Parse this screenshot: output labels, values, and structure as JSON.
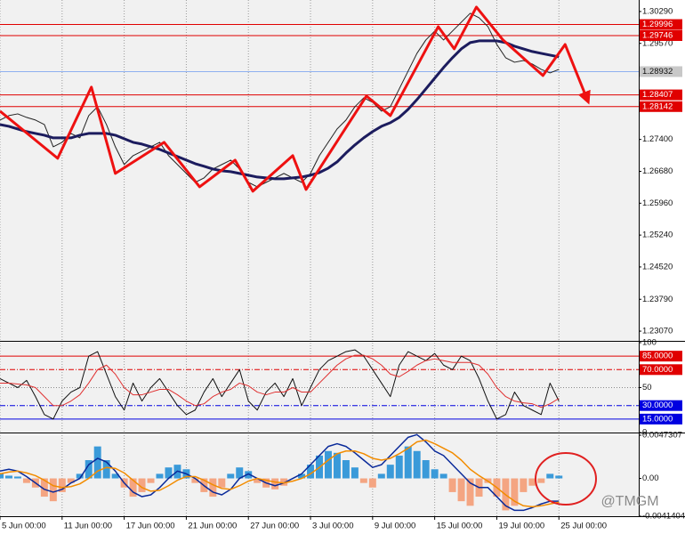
{
  "watermark": "@TMGM",
  "chart_data": [
    {
      "type": "line",
      "x": [
        0,
        1,
        2,
        3,
        4,
        5,
        6,
        7,
        8,
        9,
        10,
        11,
        12,
        13,
        14,
        15,
        16,
        17,
        18,
        19,
        20,
        21,
        22,
        23,
        24,
        25,
        26,
        27,
        28,
        29,
        30,
        31,
        32,
        33,
        34,
        35,
        36,
        37,
        38,
        39,
        40,
        41,
        42,
        43,
        44,
        45,
        46,
        47,
        48,
        49,
        50,
        51,
        52,
        53,
        54,
        55,
        56,
        57,
        58,
        59,
        60,
        61,
        62,
        63
      ],
      "xlim": [
        0,
        72
      ],
      "ylim": [
        1.2285,
        1.3055
      ],
      "yticks": [
        {
          "value": 1.3029,
          "label": "1.30290"
        },
        {
          "value": 1.2957,
          "label": "1.29570"
        },
        {
          "value": 1.274,
          "label": "1.27400"
        },
        {
          "value": 1.2668,
          "label": "1.26680"
        },
        {
          "value": 1.2596,
          "label": "1.25960"
        },
        {
          "value": 1.2524,
          "label": "1.25240"
        },
        {
          "value": 1.2452,
          "label": "1.24520"
        },
        {
          "value": 1.2379,
          "label": "1.23790"
        },
        {
          "value": 1.2307,
          "label": "1.23070"
        }
      ],
      "series": [
        {
          "color": "#222222",
          "width": 1,
          "values": [
            1.27838,
            1.27938,
            1.27978,
            1.27898,
            1.27838,
            1.27737,
            1.27235,
            1.27335,
            1.27536,
            1.27436,
            1.27938,
            1.28139,
            1.27737,
            1.27235,
            1.26833,
            1.27034,
            1.27134,
            1.27235,
            1.27335,
            1.27034,
            1.26833,
            1.26632,
            1.26431,
            1.26531,
            1.26732,
            1.26833,
            1.26933,
            1.26732,
            1.26431,
            1.2633,
            1.26431,
            1.26531,
            1.26632,
            1.26531,
            1.26431,
            1.26632,
            1.27034,
            1.27335,
            1.27637,
            1.27838,
            1.28139,
            1.2834,
            1.2824,
            1.28039,
            1.28139,
            1.28541,
            1.28943,
            1.29345,
            1.29647,
            1.29848,
            1.29647,
            1.29848,
            1.30049,
            1.3025,
            1.30149,
            1.29948,
            1.29546,
            1.29245,
            1.29144,
            1.29184,
            1.29104,
            1.28983,
            1.28903,
            1.28983
          ]
        },
        {
          "color": "#1c1c5e",
          "width": 3,
          "values": [
            1.27737,
            1.27697,
            1.27637,
            1.27577,
            1.27536,
            1.27496,
            1.27436,
            1.27436,
            1.27436,
            1.27496,
            1.27536,
            1.27536,
            1.27536,
            1.27496,
            1.27416,
            1.27335,
            1.27295,
            1.27235,
            1.27175,
            1.27094,
            1.27014,
            1.26933,
            1.26853,
            1.26793,
            1.26732,
            1.26692,
            1.26672,
            1.26632,
            1.26592,
            1.26551,
            1.26531,
            1.26511,
            1.26511,
            1.26531,
            1.26551,
            1.26592,
            1.26652,
            1.26752,
            1.26893,
            1.27094,
            1.27275,
            1.27436,
            1.27577,
            1.27697,
            1.27778,
            1.27898,
            1.28079,
            1.283,
            1.28541,
            1.28783,
            1.29024,
            1.29245,
            1.29446,
            1.29587,
            1.29627,
            1.29627,
            1.29627,
            1.29587,
            1.29506,
            1.29446,
            1.29386,
            1.29345,
            1.29305,
            1.29265
          ]
        }
      ],
      "levels": [
        {
          "value": 1.29996,
          "color": "#e00000",
          "dash": "solid"
        },
        {
          "value": 1.29746,
          "color": "#e00000",
          "dash": "solid"
        },
        {
          "value": 1.28407,
          "color": "#e00000",
          "dash": "solid"
        },
        {
          "value": 1.28142,
          "color": "#e00000",
          "dash": "solid"
        }
      ],
      "last_price": 1.28932,
      "zigzag": {
        "color": "#ee1111",
        "x": [
          0,
          6.5,
          10.3,
          13,
          18.5,
          22.5,
          26.5,
          28.5,
          33,
          34.5,
          41.3,
          44,
          49.4,
          51.2,
          53.7,
          56.7,
          61.2,
          63.7,
          66.2
        ],
        "values": [
          1.28039,
          1.26974,
          1.28582,
          1.26632,
          1.27335,
          1.2633,
          1.26933,
          1.2623,
          1.27034,
          1.2627,
          1.28381,
          1.27938,
          1.29948,
          1.29446,
          1.3039,
          1.29647,
          1.28843,
          1.29546,
          1.283
        ]
      }
    },
    {
      "type": "line",
      "x": [
        0,
        1,
        2,
        3,
        4,
        5,
        6,
        7,
        8,
        9,
        10,
        11,
        12,
        13,
        14,
        15,
        16,
        17,
        18,
        19,
        20,
        21,
        22,
        23,
        24,
        25,
        26,
        27,
        28,
        29,
        30,
        31,
        32,
        33,
        34,
        35,
        36,
        37,
        38,
        39,
        40,
        41,
        42,
        43,
        44,
        45,
        46,
        47,
        48,
        49,
        50,
        51,
        52,
        53,
        54,
        55,
        56,
        57,
        58,
        59,
        60,
        61,
        62,
        63
      ],
      "xlim": [
        0,
        72
      ],
      "ylim": [
        0,
        100
      ],
      "yticks": [
        100,
        50,
        0
      ],
      "series": [
        {
          "color": "#111111",
          "width": 1,
          "values": [
            60,
            55,
            50,
            58,
            40,
            20,
            15,
            35,
            45,
            50,
            85,
            90,
            65,
            40,
            25,
            55,
            35,
            50,
            60,
            45,
            30,
            20,
            25,
            45,
            60,
            40,
            55,
            70,
            35,
            25,
            45,
            55,
            40,
            60,
            30,
            50,
            70,
            80,
            85,
            90,
            92,
            85,
            70,
            55,
            40,
            75,
            90,
            85,
            80,
            88,
            75,
            70,
            85,
            80,
            60,
            35,
            15,
            20,
            45,
            30,
            25,
            20,
            55,
            35
          ]
        },
        {
          "color": "#e03030",
          "width": 1,
          "values": [
            55,
            55,
            54,
            53,
            50,
            40,
            30,
            30,
            35,
            42,
            55,
            70,
            75,
            65,
            50,
            42,
            42,
            45,
            48,
            48,
            42,
            35,
            30,
            32,
            40,
            45,
            48,
            55,
            52,
            45,
            42,
            45,
            45,
            50,
            45,
            45,
            55,
            65,
            75,
            82,
            86,
            86,
            82,
            75,
            65,
            62,
            68,
            75,
            80,
            82,
            80,
            78,
            78,
            78,
            75,
            65,
            50,
            40,
            35,
            33,
            32,
            28,
            32,
            38
          ]
        }
      ],
      "levels": [
        {
          "value": 85,
          "label": "85.0000",
          "color": "#e00000",
          "dash": "solid"
        },
        {
          "value": 70,
          "label": "70.0000",
          "color": "#e00000",
          "dash": "dashdot"
        },
        {
          "value": 30,
          "label": "30.0000",
          "color": "#0000e0",
          "dash": "dashdot"
        },
        {
          "value": 15,
          "label": "15.0000",
          "color": "#0000e0",
          "dash": "solid"
        }
      ]
    },
    {
      "type": "bar",
      "x": [
        0,
        1,
        2,
        3,
        4,
        5,
        6,
        7,
        8,
        9,
        10,
        11,
        12,
        13,
        14,
        15,
        16,
        17,
        18,
        19,
        20,
        21,
        22,
        23,
        24,
        25,
        26,
        27,
        28,
        29,
        30,
        31,
        32,
        33,
        34,
        35,
        36,
        37,
        38,
        39,
        40,
        41,
        42,
        43,
        44,
        45,
        46,
        47,
        48,
        49,
        50,
        51,
        52,
        53,
        54,
        55,
        56,
        57,
        58,
        59,
        60,
        61,
        62,
        63
      ],
      "xlim": [
        0,
        72
      ],
      "xticks": [
        {
          "value": 0,
          "label": "5 Jun 00:00"
        },
        {
          "value": 7,
          "label": "11 Jun 00:00"
        },
        {
          "value": 14,
          "label": "17 Jun 00:00"
        },
        {
          "value": 21,
          "label": "21 Jun 00:00"
        },
        {
          "value": 28,
          "label": "27 Jun 00:00"
        },
        {
          "value": 35,
          "label": "3 Jul 00:00"
        },
        {
          "value": 42,
          "label": "9 Jul 00:00"
        },
        {
          "value": 49,
          "label": "15 Jul 00:00"
        },
        {
          "value": 56,
          "label": "19 Jul 00:00"
        },
        {
          "value": 63,
          "label": "25 Jul 00:00"
        }
      ],
      "ylim": [
        -0.0041404,
        0.0047307
      ],
      "yticks": [
        0.0047307,
        {
          "value": 0,
          "label": "0.00"
        },
        -0.0041404
      ],
      "color_positive": "#3a9ad9",
      "color_negative": "#f4a582",
      "values": [
        0.0005,
        0.0003,
        0.0002,
        -0.0005,
        -0.001,
        -0.002,
        -0.0025,
        -0.0015,
        -0.0005,
        0.0005,
        0.002,
        0.0035,
        0.002,
        0.0005,
        -0.001,
        -0.002,
        -0.0015,
        -0.0005,
        0.0005,
        0.0012,
        0.0015,
        0.001,
        -0.0005,
        -0.0015,
        -0.002,
        -0.001,
        0.0005,
        0.0012,
        0.0008,
        -0.0005,
        -0.001,
        -0.0012,
        -0.0008,
        0,
        0.0005,
        0.0015,
        0.0025,
        0.003,
        0.0028,
        0.002,
        0.0012,
        -0.0005,
        -0.001,
        0.0005,
        0.0015,
        0.0025,
        0.0035,
        0.003,
        0.002,
        0.001,
        0.0005,
        -0.0015,
        -0.0025,
        -0.003,
        -0.002,
        -0.0005,
        -0.002,
        -0.0035,
        -0.003,
        -0.0015,
        -0.0008,
        -0.0005,
        0.0005,
        0.0003
      ],
      "series": [
        {
          "color": "#0a2a9a",
          "width": 1.5,
          "values": [
            0.0008,
            0.001,
            0.0008,
            0.0002,
            -0.0005,
            -0.0012,
            -0.0015,
            -0.0012,
            -0.0005,
            0,
            0.0015,
            0.0022,
            0.0018,
            0.0008,
            -0.0005,
            -0.0015,
            -0.002,
            -0.0018,
            -0.001,
            0,
            0.0008,
            0.0005,
            0,
            -0.0008,
            -0.0015,
            -0.0018,
            -0.0012,
            0,
            0.0005,
            0,
            -0.0005,
            -0.0008,
            -0.0005,
            0,
            0.0005,
            0.0015,
            0.0025,
            0.0035,
            0.0038,
            0.0035,
            0.0028,
            0.002,
            0.0012,
            0.0015,
            0.0025,
            0.0035,
            0.0045,
            0.0048,
            0.004,
            0.003,
            0.0025,
            0.0015,
            0.0005,
            -0.0005,
            -0.001,
            -0.001,
            -0.002,
            -0.003,
            -0.0035,
            -0.0035,
            -0.0032,
            -0.0028,
            -0.0025,
            -0.0025
          ]
        },
        {
          "color": "#f28c00",
          "width": 1.5,
          "values": [
            0.0005,
            0.0007,
            0.0008,
            0.0006,
            0.0003,
            -0.0002,
            -0.0008,
            -0.001,
            -0.0009,
            -0.0006,
            0,
            0.0008,
            0.0012,
            0.0011,
            0.0006,
            -0.0002,
            -0.001,
            -0.0014,
            -0.0013,
            -0.0008,
            -0.0002,
            0.0002,
            0.0002,
            -0.0002,
            -0.0007,
            -0.0011,
            -0.0012,
            -0.0008,
            -0.0003,
            0,
            -0.0002,
            -0.0004,
            -0.0005,
            -0.0003,
            0,
            0.0005,
            0.0012,
            0.002,
            0.0027,
            0.003,
            0.003,
            0.0027,
            0.0022,
            0.002,
            0.0022,
            0.0027,
            0.0033,
            0.004,
            0.0042,
            0.0038,
            0.0033,
            0.0028,
            0.002,
            0.001,
            0.0003,
            -0.0003,
            -0.001,
            -0.0018,
            -0.0025,
            -0.003,
            -0.0031,
            -0.003,
            -0.0028,
            -0.0026
          ]
        }
      ]
    }
  ]
}
